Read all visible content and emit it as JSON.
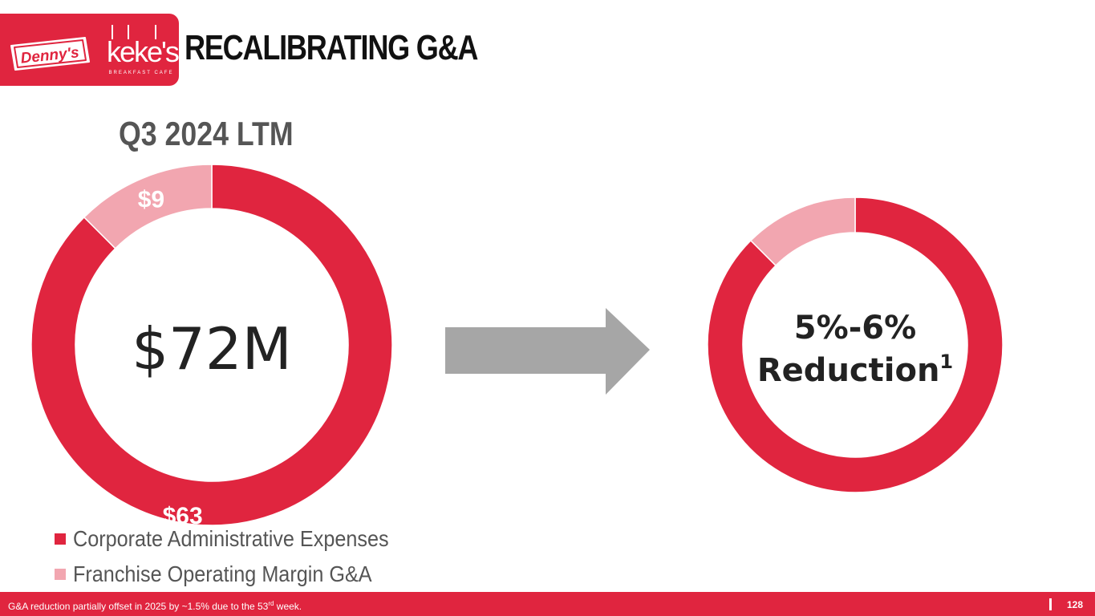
{
  "header": {
    "title": "RECALIBRATING G&A",
    "logos": {
      "dennys": "Denny's",
      "kekes": "keke's",
      "kekes_tagline": "BREAKFAST CAFE"
    }
  },
  "colors": {
    "brand_red": "#e0253f",
    "pink": "#f2a6b0",
    "arrow_gray": "#a6a6a6",
    "dark_text": "#222222",
    "gray_text": "#555555"
  },
  "chart_data": [
    {
      "type": "pie",
      "style": "donut",
      "title": "Q3 2024 LTM",
      "center_label": "$72M",
      "series": [
        {
          "name": "Corporate Administrative Expenses",
          "value": 63,
          "label": "$63",
          "color": "#e0253f"
        },
        {
          "name": "Franchise Operating Margin G&A",
          "value": 9,
          "label": "$9",
          "color": "#f2a6b0"
        }
      ],
      "legend": "bottom-left"
    },
    {
      "type": "pie",
      "style": "donut",
      "center_label_line1": "5%-6%",
      "center_label_line2": "Reduction",
      "center_label_superscript": "1",
      "series": [
        {
          "value": 63,
          "color": "#e0253f"
        },
        {
          "value": 9,
          "color": "#f2a6b0"
        }
      ]
    }
  ],
  "arrow": {
    "icon": "right-arrow-icon"
  },
  "footer": {
    "footnote_before": "G&A reduction partially offset in 2025 by ~1.5% due to the 53",
    "footnote_sup": "rd",
    "footnote_after": " week.",
    "page_number": "128"
  }
}
